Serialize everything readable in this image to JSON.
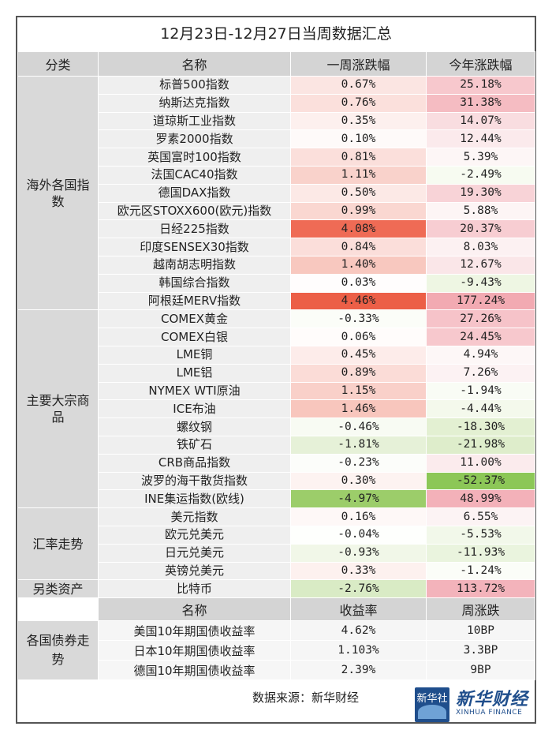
{
  "title": "12月23日-12月27日当周数据汇总",
  "headers": {
    "category": "分类",
    "name": "名称",
    "week": "一周涨跌幅",
    "ytd": "今年涨跌幅"
  },
  "groups": [
    {
      "category": "海外各国指数",
      "rows": [
        {
          "name": "标普500指数",
          "week": "0.67%",
          "ytd": "25.18%",
          "week_bg": "#fbe5e2",
          "ytd_bg": "#f7c8cd"
        },
        {
          "name": "纳斯达克指数",
          "week": "0.76%",
          "ytd": "31.38%",
          "week_bg": "#fbe0dc",
          "ytd_bg": "#f5bcc2"
        },
        {
          "name": "道琼斯工业指数",
          "week": "0.35%",
          "ytd": "14.07%",
          "week_bg": "#fdf0ee",
          "ytd_bg": "#f9dde0"
        },
        {
          "name": "罗素2000指数",
          "week": "0.10%",
          "ytd": "12.44%",
          "week_bg": "#fefaf9",
          "ytd_bg": "#fbeaec"
        },
        {
          "name": "英国富时100指数",
          "week": "0.81%",
          "ytd": "5.39%",
          "week_bg": "#fbdfdb",
          "ytd_bg": "#fdf6f6"
        },
        {
          "name": "法国CAC40指数",
          "week": "1.11%",
          "ytd": "-2.49%",
          "week_bg": "#f9d2cb",
          "ytd_bg": "#f7fbf1"
        },
        {
          "name": "德国DAX指数",
          "week": "0.50%",
          "ytd": "19.30%",
          "week_bg": "#fce9e6",
          "ytd_bg": "#f8d3d7"
        },
        {
          "name": "欧元区STOXX600(欧元)指数",
          "week": "0.99%",
          "ytd": "5.88%",
          "week_bg": "#fad7d1",
          "ytd_bg": "#fdf5f5"
        },
        {
          "name": "日经225指数",
          "week": "4.08%",
          "ytd": "20.37%",
          "week_bg": "#ef6b55",
          "ytd_bg": "#f7cdd2"
        },
        {
          "name": "印度SENSEX30指数",
          "week": "0.84%",
          "ytd": "8.03%",
          "week_bg": "#fbdeda",
          "ytd_bg": "#fcf1f2"
        },
        {
          "name": "越南胡志明指数",
          "week": "1.40%",
          "ytd": "12.67%",
          "week_bg": "#f8c8bf",
          "ytd_bg": "#fae6e8"
        },
        {
          "name": "韩国综合指数",
          "week": "0.03%",
          "ytd": "-9.43%",
          "week_bg": "#fffdfd",
          "ytd_bg": "#eef6e3"
        },
        {
          "name": "阿根廷MERV指数",
          "week": "4.46%",
          "ytd": "177.24%",
          "week_bg": "#ec5f47",
          "ytd_bg": "#f2aab2"
        }
      ]
    },
    {
      "category": "主要大宗商品",
      "rows": [
        {
          "name": "COMEX黄金",
          "week": "-0.33%",
          "ytd": "27.26%",
          "week_bg": "#fbfdf8",
          "ytd_bg": "#f6c3c9"
        },
        {
          "name": "COMEX白银",
          "week": "0.06%",
          "ytd": "24.45%",
          "week_bg": "#fffcfb",
          "ytd_bg": "#f7c8cd"
        },
        {
          "name": "LME铜",
          "week": "0.45%",
          "ytd": "4.94%",
          "week_bg": "#fdecea",
          "ytd_bg": "#fdf7f7"
        },
        {
          "name": "LME铝",
          "week": "0.89%",
          "ytd": "7.26%",
          "week_bg": "#fbdcd7",
          "ytd_bg": "#fcf2f3"
        },
        {
          "name": "NYMEX WTI原油",
          "week": "1.15%",
          "ytd": "-1.94%",
          "week_bg": "#f9d0c9",
          "ytd_bg": "#f9fcf5"
        },
        {
          "name": "ICE布油",
          "week": "1.46%",
          "ytd": "-4.44%",
          "week_bg": "#f8c6bd",
          "ytd_bg": "#f4f9ec"
        },
        {
          "name": "螺纹钢",
          "week": "-0.46%",
          "ytd": "-18.30%",
          "week_bg": "#f8fbf3",
          "ytd_bg": "#e3f0d2"
        },
        {
          "name": "铁矿石",
          "week": "-1.81%",
          "ytd": "-21.98%",
          "week_bg": "#e6f1d8",
          "ytd_bg": "#deedcb"
        },
        {
          "name": "CRB商品指数",
          "week": "-0.23%",
          "ytd": "11.00%",
          "week_bg": "#fcfdfa",
          "ytd_bg": "#fbebed"
        },
        {
          "name": "波罗的海干散货指数",
          "week": "0.30%",
          "ytd": "-52.37%",
          "week_bg": "#fdf3f1",
          "ytd_bg": "#8cc757"
        },
        {
          "name": "INE集运指数(欧线)",
          "week": "-4.97%",
          "ytd": "48.99%",
          "week_bg": "#9ccd6a",
          "ytd_bg": "#f3b1b9"
        }
      ]
    },
    {
      "category": "汇率走势",
      "rows": [
        {
          "name": "美元指数",
          "week": "0.16%",
          "ytd": "6.55%",
          "week_bg": "#fef8f7",
          "ytd_bg": "#fcf3f4"
        },
        {
          "name": "欧元兑美元",
          "week": "-0.04%",
          "ytd": "-5.53%",
          "week_bg": "#fefffd",
          "ytd_bg": "#f2f8ea"
        },
        {
          "name": "日元兑美元",
          "week": "-0.93%",
          "ytd": "-11.93%",
          "week_bg": "#f1f7e8",
          "ytd_bg": "#eaf4de"
        },
        {
          "name": "英镑兑美元",
          "week": "0.33%",
          "ytd": "-1.24%",
          "week_bg": "#fdf1ef",
          "ytd_bg": "#fbfdf8"
        }
      ]
    },
    {
      "category": "另类资产",
      "rows": [
        {
          "name": "比特币",
          "week": "-2.76%",
          "ytd": "113.72%",
          "week_bg": "#d9ebc5",
          "ytd_bg": "#f3b3bb"
        }
      ]
    }
  ],
  "bonds": {
    "headers": {
      "name": "名称",
      "yield": "收益率",
      "weekly": "周涨跌"
    },
    "category": "各国债券走势",
    "rows": [
      {
        "name": "美国10年期国债收益率",
        "yield": "4.62%",
        "weekly": "10BP"
      },
      {
        "name": "日本10年期国债收益率",
        "yield": "1.103%",
        "weekly": "3.3BP"
      },
      {
        "name": "德国10年期国债收益率",
        "yield": "2.39%",
        "weekly": "9BP"
      }
    ]
  },
  "source": "数据来源：新华财经",
  "logo": {
    "badge": "新华社",
    "brand": "新华财经",
    "brand_en": "XINHUA FINANCE",
    "badge_color": "#1f4e8c"
  }
}
